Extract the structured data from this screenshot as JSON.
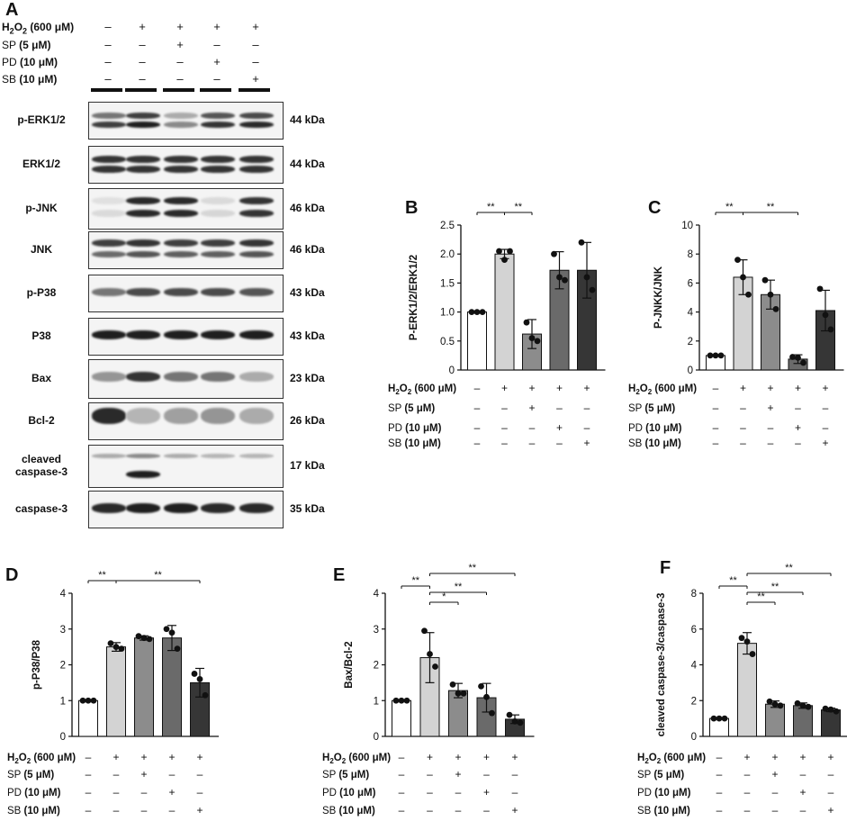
{
  "panels": {
    "A": "A",
    "B": "B",
    "C": "C",
    "D": "D",
    "E": "E",
    "F": "F"
  },
  "treatments": {
    "h2o2": {
      "label": "H2O2 (600 μM)",
      "signs": [
        "–",
        "+",
        "+",
        "+",
        "+"
      ]
    },
    "sp": {
      "label": "SP (5 μM)",
      "signs": [
        "–",
        "–",
        "+",
        "–",
        "–"
      ]
    },
    "pd": {
      "label": "PD (10 μM)",
      "signs": [
        "–",
        "–",
        "–",
        "+",
        "–"
      ]
    },
    "sb": {
      "label": "SB (10 μM)",
      "signs": [
        "–",
        "–",
        "–",
        "–",
        "+"
      ]
    }
  },
  "blots": [
    {
      "protein": "p-ERK1/2",
      "kda": "44 kDa"
    },
    {
      "protein": "ERK1/2",
      "kda": "44 kDa"
    },
    {
      "protein": "p-JNK",
      "kda": "46 kDa"
    },
    {
      "protein": "JNK",
      "kda": "46 kDa"
    },
    {
      "protein": "p-P38",
      "kda": "43 kDa"
    },
    {
      "protein": "P38",
      "kda": "43 kDa"
    },
    {
      "protein": "Bax",
      "kda": "23 kDa"
    },
    {
      "protein": "Bcl-2",
      "kda": "26 kDa"
    },
    {
      "protein": "cleaved caspase-3",
      "kda": "17 kDa"
    },
    {
      "protein": "caspase-3",
      "kda": "35 kDa"
    }
  ],
  "colors": {
    "bars": [
      "#ffffff",
      "#d3d3d3",
      "#8c8c8c",
      "#6a6a6a",
      "#363636"
    ]
  },
  "chart_data": [
    {
      "panel": "B",
      "type": "bar",
      "ylabel": "P-ERK1/2/ERK1/2",
      "ylim": [
        0,
        2.5
      ],
      "yticks": [
        "0",
        "0.5",
        "1.0",
        "1.5",
        "2.0",
        "2.5"
      ],
      "values": [
        1.0,
        2.0,
        0.62,
        1.72,
        1.72
      ],
      "errors": [
        0,
        0.08,
        0.25,
        0.32,
        0.48
      ],
      "points": [
        [
          1,
          1,
          1
        ],
        [
          2.05,
          1.9,
          2.05
        ],
        [
          0.82,
          0.55,
          0.5
        ],
        [
          2.0,
          1.6,
          1.55
        ],
        [
          2.2,
          1.6,
          1.38
        ]
      ],
      "sig": [
        {
          "from": 0,
          "to": 1,
          "text": "**",
          "level": 0
        },
        {
          "from": 1,
          "to": 2,
          "text": "**",
          "level": 0
        }
      ]
    },
    {
      "panel": "C",
      "type": "bar",
      "ylabel": "P-JNKK/JNK",
      "ylim": [
        0,
        10
      ],
      "yticks": [
        "0",
        "2",
        "4",
        "6",
        "8",
        "10"
      ],
      "values": [
        1.0,
        6.4,
        5.2,
        0.75,
        4.1
      ],
      "errors": [
        0,
        1.2,
        1.0,
        0.3,
        1.4
      ],
      "points": [
        [
          1,
          1,
          1
        ],
        [
          7.6,
          6.4,
          5.2
        ],
        [
          6.2,
          5.2,
          4.2
        ],
        [
          0.9,
          0.85,
          0.5
        ],
        [
          5.6,
          3.8,
          2.8
        ]
      ],
      "sig": [
        {
          "from": 0,
          "to": 1,
          "text": "**",
          "level": 0
        },
        {
          "from": 1,
          "to": 3,
          "text": "**",
          "level": 0
        }
      ]
    },
    {
      "panel": "D",
      "type": "bar",
      "ylabel": "p-P38/P38",
      "ylim": [
        0,
        4
      ],
      "yticks": [
        "0",
        "1",
        "2",
        "3",
        "4"
      ],
      "values": [
        1.0,
        2.5,
        2.75,
        2.75,
        1.5
      ],
      "errors": [
        0,
        0.12,
        0.06,
        0.35,
        0.4
      ],
      "points": [
        [
          1,
          1,
          1
        ],
        [
          2.6,
          2.5,
          2.45
        ],
        [
          2.8,
          2.75,
          2.72
        ],
        [
          3.0,
          2.9,
          2.45
        ],
        [
          1.75,
          1.6,
          1.15
        ]
      ],
      "sig": [
        {
          "from": 0,
          "to": 1,
          "text": "**",
          "level": 0
        },
        {
          "from": 1,
          "to": 4,
          "text": "**",
          "level": 0
        }
      ]
    },
    {
      "panel": "E",
      "type": "bar",
      "ylabel": "Bax/Bcl-2",
      "ylim": [
        0,
        4
      ],
      "yticks": [
        "0",
        "1",
        "2",
        "3",
        "4"
      ],
      "values": [
        1.0,
        2.2,
        1.28,
        1.08,
        0.48
      ],
      "errors": [
        0,
        0.7,
        0.2,
        0.4,
        0.12
      ],
      "points": [
        [
          1,
          1,
          1
        ],
        [
          2.95,
          2.3,
          1.95
        ],
        [
          1.45,
          1.2,
          1.2
        ],
        [
          1.4,
          1.1,
          0.65
        ],
        [
          0.6,
          0.42,
          0.38
        ]
      ],
      "sig": [
        {
          "from": 0,
          "to": 1,
          "text": "**",
          "level": 0
        },
        {
          "from": 1,
          "to": 2,
          "text": "*",
          "level": 1
        },
        {
          "from": 1,
          "to": 3,
          "text": "**",
          "level": 2
        },
        {
          "from": 1,
          "to": 4,
          "text": "**",
          "level": 3
        }
      ]
    },
    {
      "panel": "F",
      "type": "bar",
      "ylabel": "cleaved caspase-3/caspase-3",
      "ylim": [
        0,
        8
      ],
      "yticks": [
        "0",
        "2",
        "4",
        "6",
        "8"
      ],
      "values": [
        1.0,
        5.2,
        1.8,
        1.72,
        1.48
      ],
      "errors": [
        0,
        0.6,
        0.18,
        0.15,
        0.1
      ],
      "points": [
        [
          1,
          1,
          1
        ],
        [
          5.5,
          5.3,
          4.6
        ],
        [
          1.95,
          1.8,
          1.72
        ],
        [
          1.85,
          1.72,
          1.65
        ],
        [
          1.55,
          1.5,
          1.4
        ]
      ],
      "sig": [
        {
          "from": 0,
          "to": 1,
          "text": "**",
          "level": 0
        },
        {
          "from": 1,
          "to": 2,
          "text": "**",
          "level": 1
        },
        {
          "from": 1,
          "to": 3,
          "text": "**",
          "level": 2
        },
        {
          "from": 1,
          "to": 4,
          "text": "**",
          "level": 3
        }
      ]
    }
  ]
}
